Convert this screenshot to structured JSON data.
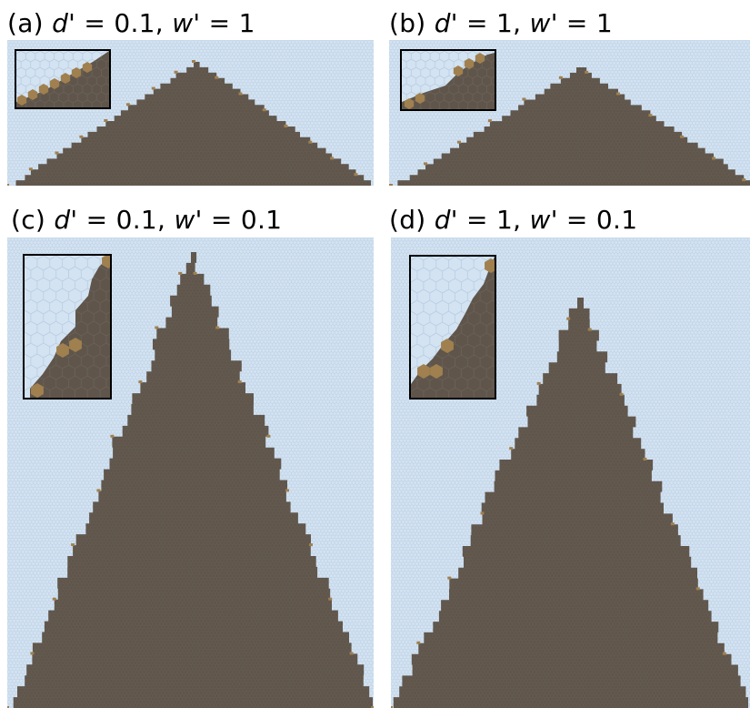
{
  "colors": {
    "background": "#d4e3f1",
    "hex_line": "#b7cde5",
    "deposit": "#5f554b",
    "deposit_line": "#6c645b",
    "highlight": "#a0804f"
  },
  "panels": [
    {
      "id": "a",
      "letter": "(a)",
      "d_symbol": "d'",
      "d_value": "0.1",
      "w_symbol": "w'",
      "w_value": "1"
    },
    {
      "id": "b",
      "letter": "(b)",
      "d_symbol": "d'",
      "d_value": "1",
      "w_symbol": "w'",
      "w_value": "1"
    },
    {
      "id": "c",
      "letter": "(c)",
      "d_symbol": "d'",
      "d_value": "0.1",
      "w_symbol": "w'",
      "w_value": "0.1"
    },
    {
      "id": "d",
      "letter": "(d)",
      "d_symbol": "d'",
      "d_value": "1",
      "w_symbol": "w'",
      "w_value": "0.1"
    }
  ]
}
